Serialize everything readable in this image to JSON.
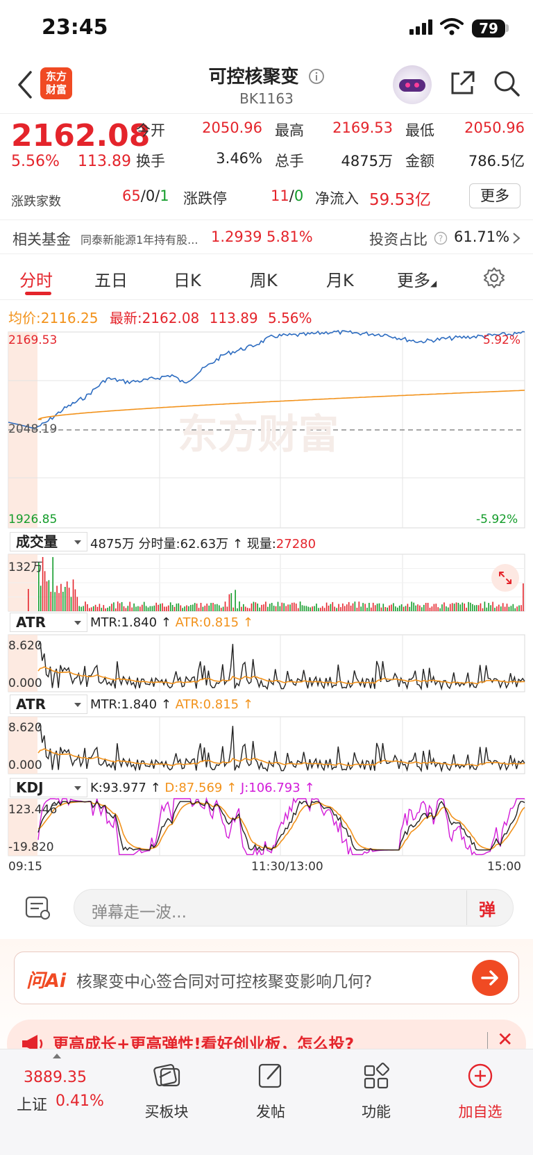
{
  "status_bar": {
    "time": "23:45",
    "battery": "79"
  },
  "header": {
    "title": "可控核聚变",
    "code": "BK1163",
    "logo_text_1": "东方",
    "logo_text_2": "财富"
  },
  "quote": {
    "price": "2162.08",
    "change_pct": "5.56%",
    "change_val": "113.89",
    "open_label": "今开",
    "open": "2050.96",
    "high_label": "最高",
    "high": "2169.53",
    "low_label": "最低",
    "low": "2050.96",
    "turnover_label": "换手",
    "turnover": "3.46%",
    "volume_label": "总手",
    "volume": "4875万",
    "amount_label": "金额",
    "amount": "786.5亿",
    "adv_dec_label": "涨跌家数",
    "adv": "65",
    "flat": "0",
    "dec": "1",
    "slash": "/",
    "limit_label": "涨跌停",
    "limit_up": "11",
    "limit_down": "0",
    "netflow_label": "净流入",
    "netflow": "59.53亿",
    "more_label": "更多"
  },
  "fund": {
    "label": "相关基金",
    "name": "同泰新能源1年持有股...",
    "nav": "1.2939",
    "pct": "5.81%",
    "ratio_label": "投资占比",
    "ratio": "61.71%"
  },
  "tabs": [
    {
      "label": "分时"
    },
    {
      "label": "五日"
    },
    {
      "label": "日K"
    },
    {
      "label": "周K"
    },
    {
      "label": "月K"
    },
    {
      "label": "更多"
    }
  ],
  "colors": {
    "up": "#e4242b",
    "down": "#139c2a",
    "avg": "#f2921b",
    "price_line": "#2d6cc0",
    "j_line": "#d21bd8"
  },
  "intraday": {
    "avg_label": "均价:",
    "avg": "2116.25",
    "latest_label": "最新:",
    "latest": "2162.08",
    "latest_chg": "113.89",
    "latest_pct": "5.56%",
    "top_price": "2169.53",
    "mid_price": "2048.19",
    "bottom_price": "1926.85",
    "top_pct": "5.92%",
    "bottom_pct": "-5.92%",
    "watermark": "东方财富"
  },
  "volume": {
    "select": "成交量",
    "total": "4875万",
    "minute_label": "分时量:",
    "minute": "62.63万",
    "current_label": "现量:",
    "current": "27280",
    "axis_max": "132万",
    "arrow": "↑"
  },
  "atr1": {
    "select": "ATR",
    "mtr_label": "MTR:",
    "mtr": "1.840",
    "atr_label": "ATR:",
    "atr": "0.815",
    "max": "8.620",
    "min": "0.000",
    "arrow": "↑"
  },
  "atr2": {
    "select": "ATR",
    "mtr_label": "MTR:",
    "mtr": "1.840",
    "atr_label": "ATR:",
    "atr": "0.815",
    "max": "8.620",
    "min": "0.000",
    "arrow": "↑"
  },
  "kdj": {
    "select": "KDJ",
    "k_label": "K:",
    "k": "93.977",
    "d_label": "D:",
    "d": "87.569",
    "j_label": "J:",
    "j": "106.793",
    "max": "123.446",
    "min": "-19.820",
    "arrow": "↑"
  },
  "time_axis": {
    "start": "09:15",
    "mid": "11:30/13:00",
    "end": "15:00"
  },
  "comment": {
    "placeholder": "弹幕走一波...",
    "button": "弹"
  },
  "ai": {
    "brand": "问Ai",
    "question": "核聚变中心签合同对可控核聚变影响几何?"
  },
  "promo": {
    "text": "更高成长+更高弹性!看好创业板，怎么投?"
  },
  "bottom_bar": {
    "index_value": "3889.35",
    "index_name": "上证",
    "index_pct": "0.41%",
    "items": [
      {
        "label": "买板块"
      },
      {
        "label": "发帖"
      },
      {
        "label": "功能"
      },
      {
        "label": "加自选"
      }
    ]
  }
}
